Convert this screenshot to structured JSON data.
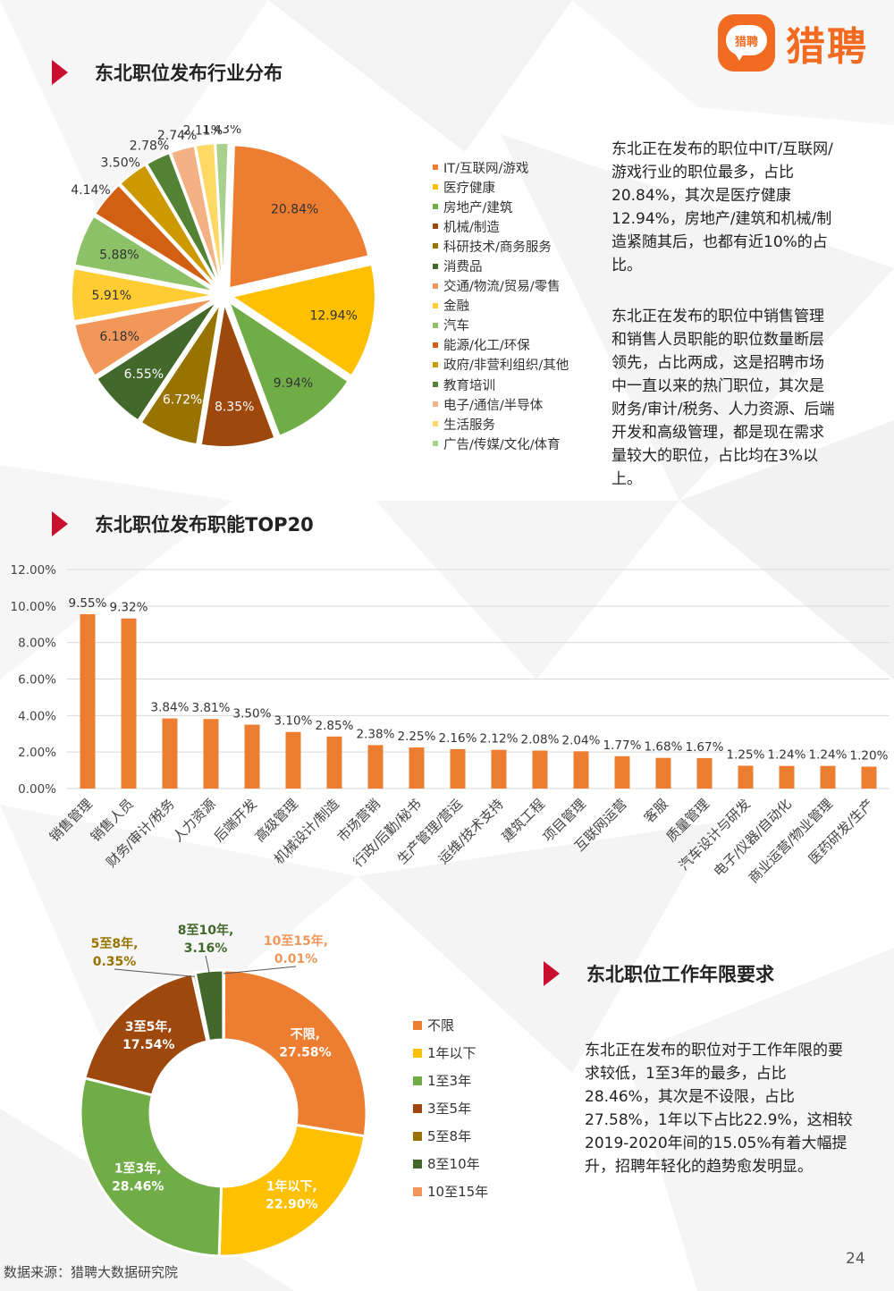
{
  "header": {
    "logo_badge_text": "猎聘",
    "logo_text": "猎聘"
  },
  "sections": {
    "industry_title": "东北职位发布行业分布",
    "function_title": "东北职位发布职能TOP20",
    "experience_title": "东北职位工作年限要求"
  },
  "paragraphs": {
    "industry_p1": "东北正在发布的职位中IT/互联网/游戏行业的职位最多，占比20.84%，其次是医疗健康12.94%，房地产/建筑和机械/制造紧随其后，也都有近10%的占比。",
    "industry_p2": "东北正在发布的职位中销售管理和销售人员职能的职位数量断层领先，占比两成，这是招聘市场中一直以来的热门职位，其次是财务/审计/税务、人力资源、后端开发和高级管理，都是现在需求量较大的职位，占比均在3%以上。",
    "experience_p": "东北正在发布的职位对于工作年限的要求较低，1至3年的最多，占比28.46%，其次是不设限，占比27.58%，1年以下占比22.9%，这相较2019-2020年间的15.05%有着大幅提升，招聘年轻化的趋势愈发明显。"
  },
  "footer": {
    "source": "数据来源：猎聘大数据研究院",
    "page_number": "24"
  },
  "chart_data": [
    {
      "type": "pie",
      "categories": [
        "IT/互联网/游戏",
        "医疗健康",
        "房地产/建筑",
        "机械/制造",
        "科研技术/商务服务",
        "消费品",
        "交通/物流/贸易/零售",
        "金融",
        "汽车",
        "能源/化工/环保",
        "政府/非营利组织/其他",
        "教育培训",
        "电子/通信/半导体",
        "生活服务",
        "广告/传媒/文化/体育"
      ],
      "values": [
        20.84,
        12.94,
        9.94,
        8.35,
        6.72,
        6.55,
        6.18,
        5.91,
        5.88,
        4.14,
        3.5,
        2.78,
        2.74,
        2.11,
        1.43
      ],
      "labels": [
        "20.84%",
        "12.94%",
        "9.94%",
        "8.35%",
        "6.72%",
        "6.55%",
        "6.18%",
        "5.91%",
        "5.88%",
        "4.14%",
        "3.50%",
        "2.78%",
        "2.74%",
        "2.11%",
        "1.43%"
      ],
      "colors": [
        "#ED7D31",
        "#FFC000",
        "#70AD47",
        "#9E480E",
        "#997300",
        "#43682B",
        "#F1975A",
        "#FFCD33",
        "#8CC168",
        "#D26012",
        "#CC9A00",
        "#548235",
        "#F4B183",
        "#FFD966",
        "#A9D18E"
      ],
      "legend_position": "right"
    },
    {
      "type": "bar",
      "categories": [
        "销售管理",
        "销售人员",
        "财务/审计/税务",
        "人力资源",
        "后端开发",
        "高级管理",
        "机械设计/制造",
        "市场营销",
        "行政/后勤/秘书",
        "生产管理/营运",
        "运维/技术支持",
        "建筑工程",
        "项目管理",
        "互联网运营",
        "客服",
        "质量管理",
        "汽车设计与研发",
        "电子/仪器/自动化",
        "商业运营/物业管理",
        "医药研发/生产"
      ],
      "values": [
        9.55,
        9.32,
        3.84,
        3.81,
        3.5,
        3.1,
        2.85,
        2.38,
        2.25,
        2.16,
        2.12,
        2.08,
        2.04,
        1.77,
        1.68,
        1.67,
        1.25,
        1.24,
        1.24,
        1.2
      ],
      "labels": [
        "9.55%",
        "9.32%",
        "3.84%",
        "3.81%",
        "3.50%",
        "3.10%",
        "2.85%",
        "2.38%",
        "2.25%",
        "2.16%",
        "2.12%",
        "2.08%",
        "2.04%",
        "1.77%",
        "1.68%",
        "1.67%",
        "1.25%",
        "1.24%",
        "1.24%",
        "1.20%"
      ],
      "yticks": [
        "0.00%",
        "2.00%",
        "4.00%",
        "6.00%",
        "8.00%",
        "10.00%",
        "12.00%"
      ],
      "ylim": [
        0,
        12
      ],
      "color": "#ED7D31",
      "grid": true
    },
    {
      "type": "pie",
      "donut": true,
      "categories": [
        "不限",
        "1年以下",
        "1至3年",
        "3至5年",
        "5至8年",
        "8至10年",
        "10至15年"
      ],
      "values": [
        27.58,
        22.9,
        28.46,
        17.54,
        0.35,
        3.16,
        0.01
      ],
      "labels": [
        "不限, 27.58%",
        "1年以下, 22.90%",
        "1至3年, 28.46%",
        "3至5年, 17.54%",
        "5至8年, 0.35%",
        "8至10年, 3.16%",
        "10至15年, 0.01%"
      ],
      "colors": [
        "#ED7D31",
        "#FFC000",
        "#70AD47",
        "#9E480E",
        "#997300",
        "#43682B",
        "#F1975A"
      ],
      "legend_position": "right"
    }
  ]
}
